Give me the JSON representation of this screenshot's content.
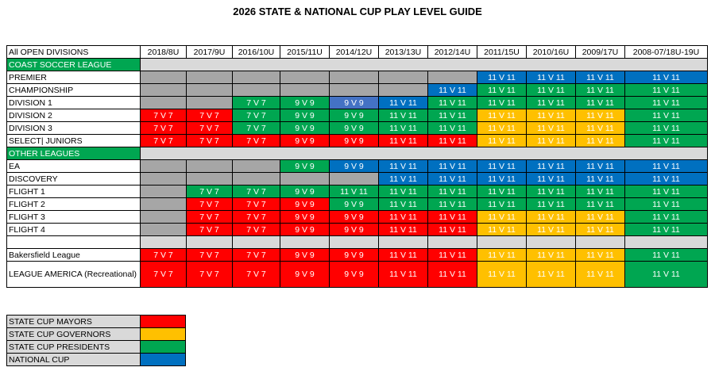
{
  "title": "2026 STATE & NATIONAL CUP PLAY LEVEL GUIDE",
  "header": {
    "label": "All OPEN DIVISIONS",
    "columns": [
      "2018/8U",
      "2017/9U",
      "2016/10U",
      "2015/11U",
      "2014/12U",
      "2013/13U",
      "2012/14U",
      "2011/15U",
      "2010/16U",
      "2009/17U",
      "2008-07/18U-19U"
    ]
  },
  "format_labels": {
    "R7": "7 V 7",
    "R9": "9 V 9",
    "R11": "11 V 11",
    "Y11": "11 V 11",
    "G7": "7 V 7",
    "G9": "9 V 9",
    "G11": "11 V 11",
    "B9": "9 V 9",
    "B11": "11 V 11",
    "L9": "9 V 9",
    "K": "",
    "E": ""
  },
  "colors": {
    "R": "#ff0000",
    "Y": "#ffc000",
    "G": "#00a651",
    "B": "#0070c0",
    "L": "#4472c4",
    "K": "#a6a6a6",
    "E": "#ffffff",
    "section": "#00a651",
    "band": "#d9d9d9"
  },
  "rows": [
    {
      "kind": "section",
      "label": "COAST SOCCER LEAGUE"
    },
    {
      "kind": "data",
      "label": "PREMIER",
      "cells": [
        "K",
        "K",
        "K",
        "K",
        "K",
        "K",
        "K",
        "B11",
        "B11",
        "B11",
        "B11"
      ]
    },
    {
      "kind": "data",
      "label": "CHAMPIONSHIP",
      "cells": [
        "K",
        "K",
        "K",
        "K",
        "K",
        "K",
        "B11",
        "G11",
        "G11",
        "G11",
        "G11"
      ]
    },
    {
      "kind": "data",
      "label": "DIVISION 1",
      "cells": [
        "K",
        "K",
        "G7",
        "G9",
        "L9",
        "B11",
        "G11",
        "G11",
        "G11",
        "G11",
        "G11"
      ]
    },
    {
      "kind": "data",
      "label": "DIVISION 2",
      "cells": [
        "R7",
        "R7",
        "G7",
        "G9",
        "G9",
        "G11",
        "G11",
        "Y11",
        "Y11",
        "Y11",
        "G11"
      ]
    },
    {
      "kind": "data",
      "label": "DIVISION 3",
      "cells": [
        "R7",
        "R7",
        "G7",
        "G9",
        "G9",
        "G11",
        "G11",
        "Y11",
        "Y11",
        "Y11",
        "G11"
      ]
    },
    {
      "kind": "data",
      "label": "SELECT| JUNIORS",
      "cells": [
        "R7",
        "R7",
        "R7",
        "R9",
        "R9",
        "R11",
        "R11",
        "Y11",
        "Y11",
        "Y11",
        "G11"
      ]
    },
    {
      "kind": "section",
      "label": "OTHER LEAGUES"
    },
    {
      "kind": "data",
      "label": "EA",
      "cells": [
        "K",
        "K",
        "K",
        "G9",
        "B9",
        "B11",
        "B11",
        "B11",
        "B11",
        "B11",
        "B11"
      ]
    },
    {
      "kind": "data",
      "label": "DISCOVERY",
      "cells": [
        "K",
        "K",
        "K",
        "K",
        "K",
        "B11",
        "B11",
        "B11",
        "B11",
        "B11",
        "B11"
      ]
    },
    {
      "kind": "data",
      "label": "FLIGHT 1",
      "cells": [
        "K",
        "G7",
        "G7",
        "G9",
        "G11",
        "G11",
        "G11",
        "G11",
        "G11",
        "G11",
        "G11"
      ]
    },
    {
      "kind": "data",
      "label": "FLIGHT 2",
      "cells": [
        "K",
        "R7",
        "R7",
        "R9",
        "G9",
        "G11",
        "G11",
        "G11",
        "G11",
        "G11",
        "G11"
      ]
    },
    {
      "kind": "data",
      "label": "FLIGHT 3",
      "cells": [
        "K",
        "R7",
        "R7",
        "R9",
        "R9",
        "R11",
        "R11",
        "Y11",
        "Y11",
        "Y11",
        "G11"
      ]
    },
    {
      "kind": "data",
      "label": "FLIGHT 4",
      "cells": [
        "K",
        "R7",
        "R7",
        "R9",
        "R9",
        "R11",
        "R11",
        "Y11",
        "Y11",
        "Y11",
        "G11"
      ]
    },
    {
      "kind": "gap"
    },
    {
      "kind": "data",
      "label": "Bakersfield League",
      "cells": [
        "R7",
        "R7",
        "R7",
        "R9",
        "R9",
        "R11",
        "R11",
        "Y11",
        "Y11",
        "Y11",
        "G11"
      ]
    },
    {
      "kind": "data",
      "tall": true,
      "label": "LEAGUE AMERICA (Recreational)",
      "cells": [
        "R7",
        "R7",
        "R7",
        "R9",
        "R9",
        "R11",
        "R11",
        "Y11",
        "Y11",
        "Y11",
        "G11"
      ]
    }
  ],
  "legend": [
    {
      "label": "STATE CUP MAYORS",
      "color": "#ff0000"
    },
    {
      "label": "STATE CUP GOVERNORS",
      "color": "#ffc000"
    },
    {
      "label": "STATE CUP PRESIDENTS",
      "color": "#00a651"
    },
    {
      "label": "NATIONAL CUP",
      "color": "#0070c0"
    }
  ]
}
